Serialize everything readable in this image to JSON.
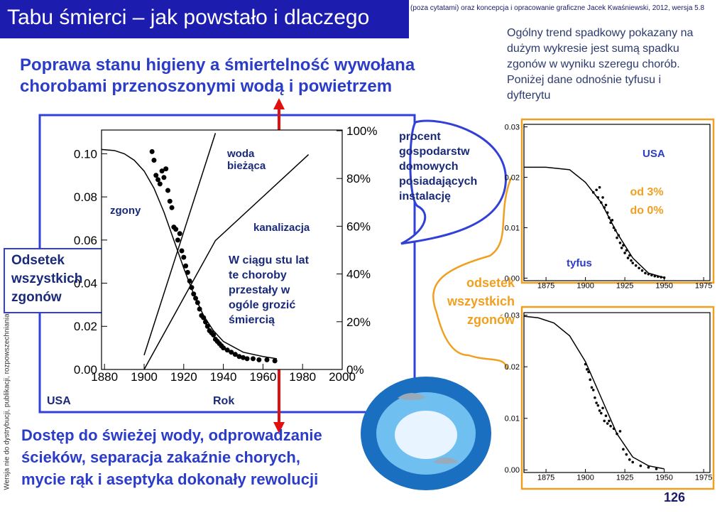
{
  "header": {
    "title": "Tabu śmierci – jak powstało i dlaczego",
    "credit": "(poza cytatami) oraz koncepcja i opracowanie graficzne Jacek Kwaśniewski, 2012,  wersja 5.8"
  },
  "heading": [
    "Poprawa stanu higieny a śmiertelność wywołana",
    "chorobami przenoszonymi wodą i powietrzem"
  ],
  "note": [
    "Ogólny trend spadkowy pokazany na",
    "dużym wykresie jest sumą spadku",
    "zgonów w wyniku szeregu chorób.",
    "Poniżej dane odnośnie tyfusu i",
    "dyfterytu"
  ],
  "callouts": {
    "installations": [
      "procent",
      "gospodarstw",
      "domowych",
      "posiadających",
      "instalację"
    ],
    "left_axis": [
      "Odsetek",
      "wszystkich",
      "zgonów"
    ],
    "century": [
      "W ciągu stu lat",
      "te choroby",
      "przestały w",
      "ogóle grozić",
      "śmiercią"
    ],
    "right_axis": [
      "odsetek",
      "wszystkich",
      "zgonów"
    ],
    "drop": [
      "od 3%",
      "do 0%"
    ]
  },
  "conclusion": [
    "Dostęp do świeżej wody, odprowadzanie",
    "ścieków, separacja zakaźnie chorych,",
    "mycie rąk i aseptyka dokonały rewolucji"
  ],
  "side_note": "Wersja nie do dystrybucji, publikacji, rozpowszechniania",
  "page_number": "126",
  "chart_data": [
    {
      "type": "scatter",
      "xlabel": "Rok",
      "annotations": [
        "USA"
      ],
      "xlim": [
        1878.5,
        2000
      ],
      "ylim": [
        0,
        0.111
      ],
      "y2lim": [
        0,
        100.3
      ],
      "xticks": [
        1880,
        1900,
        1920,
        1940,
        1960,
        1980,
        2000
      ],
      "yticks": [
        {
          "value": 0,
          "label": "0.00"
        },
        {
          "value": 0.02,
          "label": "0.02"
        },
        {
          "value": 0.04,
          "label": "0.04"
        },
        {
          "value": 0.06,
          "label": "0.06"
        },
        {
          "value": 0.08,
          "label": "0.08"
        },
        {
          "value": 0.1,
          "label": "0.10"
        }
      ],
      "y2ticks": [
        {
          "value": 0,
          "label": "0%"
        },
        {
          "value": 20,
          "label": "20%"
        },
        {
          "value": 40,
          "label": "40%"
        },
        {
          "value": 60,
          "label": "60%"
        },
        {
          "value": 80,
          "label": "80%"
        },
        {
          "value": 100,
          "label": "100%"
        }
      ],
      "series": [
        {
          "name": "zgony",
          "type": "scatter",
          "color": "#000000",
          "x": [
            1904,
            1905,
            1906,
            1907,
            1908,
            1909,
            1910,
            1911,
            1912,
            1913,
            1914,
            1915,
            1916,
            1917,
            1918,
            1919,
            1920,
            1921,
            1922,
            1923,
            1924,
            1925,
            1926,
            1927,
            1928,
            1929,
            1930,
            1931,
            1932,
            1933,
            1934,
            1935,
            1936,
            1937,
            1938,
            1939,
            1940,
            1942,
            1944,
            1946,
            1948,
            1950,
            1952,
            1955,
            1958,
            1962,
            1966
          ],
          "values": [
            0.101,
            0.097,
            0.09,
            0.088,
            0.086,
            0.092,
            0.089,
            0.093,
            0.083,
            0.078,
            0.075,
            0.066,
            0.065,
            0.06,
            0.063,
            0.055,
            0.052,
            0.048,
            0.045,
            0.041,
            0.038,
            0.035,
            0.033,
            0.031,
            0.028,
            0.025,
            0.024,
            0.022,
            0.02,
            0.018,
            0.017,
            0.016,
            0.014,
            0.013,
            0.012,
            0.011,
            0.01,
            0.009,
            0.008,
            0.007,
            0.006,
            0.0055,
            0.005,
            0.005,
            0.0045,
            0.0045,
            0.004
          ]
        },
        {
          "type": "line",
          "color": "#000000",
          "x": [
            1878.5,
            1885,
            1890,
            1895,
            1900,
            1905,
            1910,
            1915,
            1920,
            1925,
            1930,
            1935,
            1940,
            1950,
            1960,
            1967
          ],
          "values": [
            0.102,
            0.1015,
            0.1,
            0.097,
            0.092,
            0.084,
            0.073,
            0.06,
            0.047,
            0.035,
            0.025,
            0.018,
            0.013,
            0.008,
            0.006,
            0.005
          ]
        },
        {
          "name": "woda bieżąca",
          "type": "line",
          "axis": "y2",
          "color": "#000000",
          "x": [
            1900,
            1936
          ],
          "values": [
            6,
            99
          ]
        },
        {
          "name": "kanalizacja",
          "type": "line",
          "axis": "y2",
          "color": "#000000",
          "x": [
            1900,
            1936,
            1983
          ],
          "values": [
            0,
            54,
            90
          ]
        }
      ]
    },
    {
      "type": "scatter",
      "annotations": [
        "USA",
        "tyfus"
      ],
      "xlim": [
        1861,
        1979
      ],
      "ylim": [
        -0.0005,
        0.0305
      ],
      "xticks": [
        1875,
        1900,
        1925,
        1950,
        1975
      ],
      "yticks": [
        {
          "value": 0,
          "label": "0.00"
        },
        {
          "value": 0.01,
          "label": "0.01"
        },
        {
          "value": 0.02,
          "label": "0.02"
        },
        {
          "value": 0.03,
          "label": "0.03"
        }
      ],
      "series": [
        {
          "type": "scatter",
          "color": "#000000",
          "x": [
            1905,
            1907,
            1908,
            1909,
            1910,
            1911,
            1912,
            1913,
            1914,
            1915,
            1916,
            1917,
            1918,
            1919,
            1920,
            1921,
            1922,
            1923,
            1924,
            1925,
            1926,
            1927,
            1928,
            1929,
            1930,
            1932,
            1934,
            1936,
            1938,
            1940,
            1942,
            1944,
            1946,
            1948,
            1950
          ],
          "values": [
            0.017,
            0.0175,
            0.016,
            0.018,
            0.015,
            0.016,
            0.014,
            0.0145,
            0.013,
            0.012,
            0.011,
            0.0115,
            0.01,
            0.0095,
            0.008,
            0.0085,
            0.007,
            0.006,
            0.0065,
            0.005,
            0.0055,
            0.004,
            0.0045,
            0.0035,
            0.003,
            0.0025,
            0.002,
            0.0015,
            0.001,
            0.0008,
            0.0006,
            0.0004,
            0.0003,
            0.0002,
            0.0001
          ]
        },
        {
          "type": "line",
          "color": "#000000",
          "x": [
            1861,
            1875,
            1890,
            1900,
            1910,
            1920,
            1930,
            1940,
            1950
          ],
          "values": [
            0.022,
            0.022,
            0.0215,
            0.019,
            0.015,
            0.009,
            0.004,
            0.001,
            0.0001
          ]
        }
      ]
    },
    {
      "type": "scatter",
      "xlim": [
        1861,
        1979
      ],
      "ylim": [
        -0.0005,
        0.0305
      ],
      "xticks": [
        1875,
        1900,
        1925,
        1950,
        1975
      ],
      "yticks": [
        {
          "value": 0,
          "label": "0.00"
        },
        {
          "value": 0.01,
          "label": "0.01"
        },
        {
          "value": 0.02,
          "label": "0.02"
        },
        {
          "value": 0.03,
          "label": "0.03"
        }
      ],
      "series": [
        {
          "type": "scatter",
          "color": "#000000",
          "x": [
            1900,
            1901,
            1902,
            1903,
            1904,
            1905,
            1906,
            1907,
            1908,
            1909,
            1910,
            1911,
            1912,
            1913,
            1914,
            1915,
            1916,
            1918,
            1920,
            1922,
            1924,
            1926,
            1928,
            1930,
            1935,
            1940,
            1945
          ],
          "values": [
            0.0205,
            0.0195,
            0.019,
            0.0175,
            0.016,
            0.0155,
            0.014,
            0.013,
            0.0125,
            0.0115,
            0.011,
            0.012,
            0.0095,
            0.0105,
            0.009,
            0.0095,
            0.0085,
            0.008,
            0.007,
            0.0075,
            0.004,
            0.003,
            0.002,
            0.0015,
            0.0008,
            0.0005,
            0.0002
          ]
        },
        {
          "type": "line",
          "color": "#000000",
          "x": [
            1861,
            1870,
            1880,
            1890,
            1900,
            1910,
            1920,
            1930,
            1940,
            1950
          ],
          "values": [
            0.0298,
            0.0295,
            0.0285,
            0.026,
            0.021,
            0.014,
            0.007,
            0.0025,
            0.0008,
            0.0002
          ]
        }
      ]
    }
  ]
}
